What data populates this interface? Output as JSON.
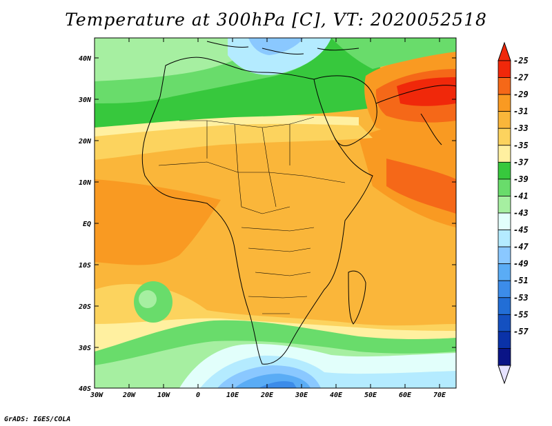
{
  "title": "Temperature at 300hPa [C], VT: 2020052518",
  "credit": "GrADS: IGES/COLA",
  "map": {
    "lon_range": [
      -30,
      75
    ],
    "lat_range": [
      -40,
      45
    ],
    "lon_ticks": [
      "30W",
      "20W",
      "10W",
      "0",
      "10E",
      "20E",
      "30E",
      "40E",
      "50E",
      "60E",
      "70E"
    ],
    "lat_ticks": [
      "40N",
      "30N",
      "20N",
      "10N",
      "EQ",
      "10S",
      "20S",
      "30S",
      "40S"
    ],
    "fields": [
      {
        "name": "sahara-saharan-band",
        "level": -37
      },
      {
        "name": "central-africa-main",
        "level": -31
      },
      {
        "name": "arabia-warm-core",
        "level": -27
      },
      {
        "name": "southern-ocean-cold",
        "level": -45
      }
    ]
  },
  "colorbar": {
    "labels": [
      "-25",
      "-27",
      "-29",
      "-31",
      "-33",
      "-35",
      "-37",
      "-39",
      "-41",
      "-43",
      "-45",
      "-47",
      "-49",
      "-51",
      "-53",
      "-55",
      "-57"
    ],
    "colors": [
      "#f0280a",
      "#f56818",
      "#f99a22",
      "#fab63a",
      "#fcd35e",
      "#fff0a0",
      "#37c83d",
      "#69dc6b",
      "#a6efa1",
      "#e2fffb",
      "#b4ebff",
      "#8ac8ff",
      "#5aacf5",
      "#3c8ce9",
      "#226ed6",
      "#1450c0",
      "#0a32a8",
      "#0a1486"
    ],
    "over_color": "#f0280a",
    "under_color": "#e6e2ff"
  }
}
